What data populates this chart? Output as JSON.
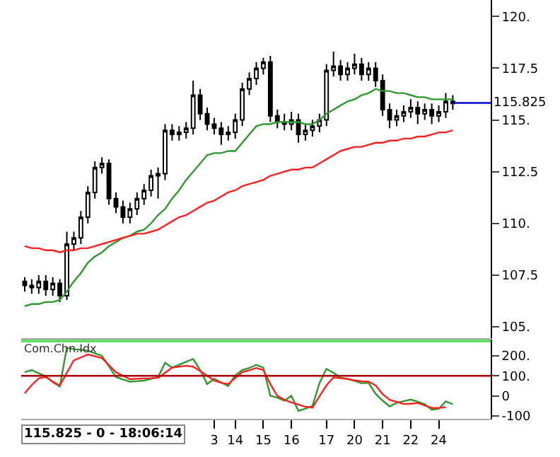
{
  "chart_data": [
    {
      "type": "candlestick",
      "tick_labels": "y",
      "grid": false,
      "categories": [
        null,
        null,
        null,
        null,
        null,
        null,
        null,
        null,
        null,
        null,
        null,
        null,
        null,
        null,
        null,
        null,
        null,
        null,
        null,
        null,
        null,
        null,
        null,
        null,
        null,
        null,
        null,
        "3",
        null,
        null,
        "14",
        null,
        null,
        null,
        "15",
        null,
        null,
        null,
        "16",
        null,
        null,
        null,
        null,
        "17",
        null,
        null,
        null,
        "20",
        null,
        null,
        null,
        "21",
        null,
        null,
        null,
        "22",
        null,
        null,
        null,
        "24",
        null,
        null
      ],
      "ohlc": [
        [
          107.2,
          107.4,
          106.7,
          107.0
        ],
        [
          107.0,
          107.3,
          106.6,
          106.9
        ],
        [
          106.9,
          107.5,
          106.6,
          107.2
        ],
        [
          107.2,
          107.5,
          106.5,
          106.8
        ],
        [
          106.8,
          107.4,
          106.5,
          107.1
        ],
        [
          107.1,
          107.3,
          106.2,
          106.5
        ],
        [
          106.5,
          109.6,
          106.3,
          109.0
        ],
        [
          109.0,
          109.6,
          108.7,
          109.3
        ],
        [
          109.3,
          110.6,
          109.0,
          110.3
        ],
        [
          110.3,
          111.8,
          110.0,
          111.5
        ],
        [
          111.5,
          113.0,
          111.2,
          112.7
        ],
        [
          112.7,
          113.2,
          112.4,
          112.9
        ],
        [
          112.9,
          113.1,
          110.9,
          111.2
        ],
        [
          111.2,
          111.5,
          110.5,
          110.8
        ],
        [
          110.8,
          111.1,
          110.0,
          110.3
        ],
        [
          110.3,
          111.0,
          110.0,
          110.7
        ],
        [
          110.7,
          111.5,
          110.4,
          111.2
        ],
        [
          111.2,
          111.9,
          110.9,
          111.6
        ],
        [
          111.6,
          112.6,
          111.3,
          112.3
        ],
        [
          112.3,
          112.7,
          111.2,
          112.4
        ],
        [
          112.4,
          114.8,
          112.1,
          114.5
        ],
        [
          114.5,
          114.8,
          114.0,
          114.3
        ],
        [
          114.3,
          114.7,
          114.0,
          114.4
        ],
        [
          114.4,
          114.9,
          114.1,
          114.6
        ],
        [
          114.6,
          116.9,
          114.3,
          116.2
        ],
        [
          116.2,
          116.5,
          115.0,
          115.3
        ],
        [
          115.3,
          115.6,
          114.5,
          114.8
        ],
        [
          114.8,
          115.1,
          114.3,
          114.6
        ],
        [
          114.6,
          114.9,
          113.8,
          114.3
        ],
        [
          114.3,
          114.7,
          114.0,
          114.4
        ],
        [
          114.4,
          115.3,
          114.1,
          115.0
        ],
        [
          115.0,
          116.8,
          114.7,
          116.5
        ],
        [
          116.5,
          117.3,
          116.2,
          117.0
        ],
        [
          117.0,
          117.8,
          116.7,
          117.5
        ],
        [
          117.5,
          118.0,
          117.2,
          117.8
        ],
        [
          117.8,
          118.1,
          114.9,
          115.2
        ],
        [
          115.2,
          115.5,
          114.6,
          114.9
        ],
        [
          114.9,
          115.3,
          114.5,
          114.8
        ],
        [
          114.8,
          115.4,
          114.5,
          115.0
        ],
        [
          115.0,
          115.3,
          113.9,
          114.3
        ],
        [
          114.3,
          114.8,
          114.0,
          114.5
        ],
        [
          114.5,
          115.0,
          114.2,
          114.7
        ],
        [
          114.7,
          115.3,
          114.4,
          115.0
        ],
        [
          115.0,
          117.7,
          114.7,
          117.4
        ],
        [
          117.4,
          118.3,
          117.1,
          117.6
        ],
        [
          117.6,
          117.9,
          116.9,
          117.2
        ],
        [
          117.2,
          117.8,
          116.9,
          117.5
        ],
        [
          117.5,
          118.2,
          117.2,
          117.7
        ],
        [
          117.7,
          118.0,
          116.9,
          117.2
        ],
        [
          117.2,
          117.8,
          116.9,
          117.5
        ],
        [
          117.5,
          117.8,
          116.6,
          116.9
        ],
        [
          116.9,
          117.2,
          115.2,
          115.5
        ],
        [
          115.5,
          115.8,
          114.6,
          115.0
        ],
        [
          115.0,
          115.5,
          114.7,
          115.2
        ],
        [
          115.2,
          115.7,
          114.9,
          115.4
        ],
        [
          115.4,
          116.0,
          115.1,
          115.6
        ],
        [
          115.6,
          115.9,
          114.8,
          115.3
        ],
        [
          115.3,
          115.8,
          115.0,
          115.5
        ],
        [
          115.5,
          115.8,
          114.8,
          115.2
        ],
        [
          115.2,
          115.7,
          114.9,
          115.4
        ],
        [
          115.4,
          116.3,
          115.1,
          115.9
        ],
        [
          115.9,
          116.2,
          115.5,
          115.8
        ]
      ],
      "color": "#000000",
      "series": [
        {
          "type": "line",
          "color": "#2e9a2e",
          "values": [
            106.0,
            106.1,
            106.1,
            106.2,
            106.2,
            106.3,
            106.7,
            107.2,
            107.6,
            108.1,
            108.4,
            108.6,
            108.9,
            109.1,
            109.3,
            109.4,
            109.6,
            109.7,
            110.0,
            110.4,
            110.7,
            111.2,
            111.6,
            112.1,
            112.5,
            112.9,
            113.3,
            113.4,
            113.4,
            113.5,
            113.5,
            113.9,
            114.3,
            114.7,
            114.8,
            114.8,
            114.9,
            114.9,
            114.9,
            114.9,
            114.8,
            114.8,
            115.0,
            115.3,
            115.5,
            115.7,
            115.9,
            116.0,
            116.2,
            116.3,
            116.5,
            116.4,
            116.4,
            116.3,
            116.3,
            116.2,
            116.1,
            116.1,
            116.0,
            116.0,
            116.0,
            116.0
          ]
        },
        {
          "type": "line",
          "color": "#ff2020",
          "values": [
            108.9,
            108.8,
            108.8,
            108.7,
            108.7,
            108.6,
            108.7,
            108.7,
            108.8,
            108.8,
            108.9,
            109.0,
            109.1,
            109.2,
            109.3,
            109.4,
            109.5,
            109.5,
            109.6,
            109.7,
            109.9,
            110.1,
            110.3,
            110.4,
            110.6,
            110.8,
            111.0,
            111.1,
            111.3,
            111.5,
            111.6,
            111.8,
            111.9,
            112.0,
            112.1,
            112.3,
            112.4,
            112.5,
            112.6,
            112.6,
            112.7,
            112.7,
            112.9,
            113.1,
            113.3,
            113.5,
            113.6,
            113.7,
            113.7,
            113.8,
            113.9,
            113.9,
            114.0,
            114.0,
            114.1,
            114.1,
            114.2,
            114.2,
            114.3,
            114.4,
            114.4,
            114.5
          ]
        }
      ],
      "ref_lines": [
        {
          "axis": "y",
          "value": 115.825,
          "label": "115.825",
          "color": "#0000cc"
        }
      ],
      "ylim": [
        104.4,
        120.8
      ],
      "yticks": [
        {
          "value": 105,
          "label": "105."
        },
        {
          "value": 107.5,
          "label": "107.5"
        },
        {
          "value": 110,
          "label": "110."
        },
        {
          "value": 112.5,
          "label": "112.5"
        },
        {
          "value": 115,
          "label": "115."
        },
        {
          "value": 117.5,
          "label": "117.5"
        },
        {
          "value": 120,
          "label": "120."
        }
      ]
    },
    {
      "type": "line",
      "title": "Com.Chn.Idx",
      "grid": false,
      "categories": [
        null,
        null,
        null,
        null,
        null,
        null,
        null,
        null,
        null,
        null,
        null,
        null,
        null,
        null,
        null,
        null,
        null,
        null,
        null,
        null,
        null,
        null,
        null,
        null,
        null,
        null,
        null,
        "3",
        null,
        null,
        "14",
        null,
        null,
        null,
        "15",
        null,
        null,
        null,
        "16",
        null,
        null,
        null,
        null,
        "17",
        null,
        null,
        null,
        "20",
        null,
        null,
        null,
        "21",
        null,
        null,
        null,
        "22",
        null,
        null,
        null,
        "24",
        null,
        null
      ],
      "series": [
        {
          "color": "#2e9a2e",
          "values": [
            118,
            129,
            112,
            98,
            68,
            47,
            240,
            233,
            230,
            226,
            213,
            200,
            147,
            94,
            82,
            71,
            73,
            76,
            85,
            94,
            165,
            141,
            155,
            170,
            184,
            129,
            59,
            85,
            67,
            49,
            102,
            129,
            139,
            155,
            141,
            0,
            -9,
            -24,
            0,
            -75,
            -64,
            -51,
            63,
            135,
            115,
            90,
            85,
            75,
            63,
            65,
            10,
            -24,
            -53,
            -35,
            -27,
            -19,
            -30,
            -42,
            -70,
            -65,
            -28,
            -42
          ]
        },
        {
          "color": "#ff2020",
          "values": [
            12,
            54,
            87,
            94,
            71,
            52,
            115,
            177,
            192,
            207,
            198,
            189,
            154,
            118,
            100,
            83,
            85,
            87,
            88,
            90,
            115,
            141,
            146,
            150,
            146,
            124,
            101,
            76,
            65,
            59,
            89,
            118,
            128,
            139,
            129,
            59,
            0,
            -20,
            -33,
            -44,
            -55,
            -59,
            -2,
            52,
            92,
            88,
            84,
            77,
            73,
            71,
            52,
            8,
            -20,
            -30,
            -41,
            -40,
            -36,
            -48,
            -61,
            -61,
            -56,
            null
          ]
        }
      ],
      "ref_lines": [
        {
          "axis": "y",
          "value": 100,
          "color": "#aa0000"
        }
      ],
      "annotations": [
        "115.825 - 0 - 18:06:14"
      ],
      "ylim": [
        -115,
        283
      ],
      "yticks": [
        {
          "value": -100,
          "label": "-100"
        },
        0,
        {
          "value": 100,
          "label": "100."
        },
        {
          "value": 200,
          "label": "200."
        }
      ]
    }
  ]
}
